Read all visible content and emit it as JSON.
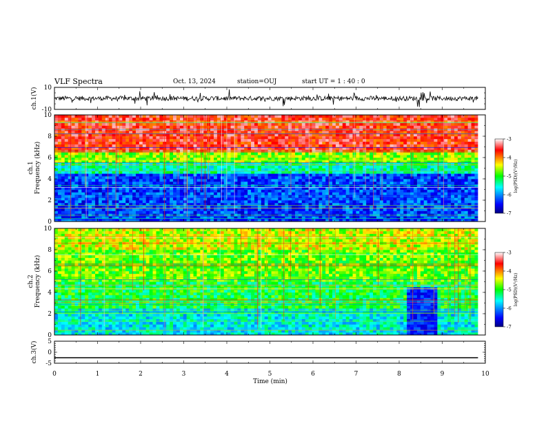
{
  "header": {
    "title": "VLF Spectra",
    "date": "Oct. 13, 2024",
    "station": "station=OUJ",
    "start_ut": "start  UT =   1 : 40 : 0"
  },
  "chart_data": [
    {
      "type": "line",
      "panel": "ch1-waveform",
      "ylabel": "ch.1(V)",
      "ylim": [
        -10,
        10
      ],
      "y_ticks": [
        "10",
        "-10"
      ],
      "x_range_min": [
        0,
        9.83
      ],
      "baseline": 0,
      "noise_amplitude": 3
    },
    {
      "type": "heatmap",
      "panel": "ch1-spectrogram",
      "ylabel": "ch.1\nFrequency (kHz)",
      "ylim": [
        0,
        10
      ],
      "y_ticks": [
        "0",
        "2",
        "4",
        "6",
        "8",
        "10"
      ],
      "x_range_min": [
        0,
        9.83
      ],
      "colorbar": {
        "label": "log(PSD)(V²/Hz)",
        "range": [
          -7,
          -3
        ],
        "ticks": [
          "-3",
          "-4",
          "-5",
          "-6",
          "-7"
        ]
      },
      "bands": [
        {
          "f_khz": [
            0,
            4.5
          ],
          "log_psd": -6.3
        },
        {
          "f_khz": [
            4.5,
            5.5
          ],
          "log_psd": -5.4
        },
        {
          "f_khz": [
            5.5,
            6.5
          ],
          "log_psd": -4.7
        },
        {
          "f_khz": [
            6.5,
            10
          ],
          "log_psd": -3.6
        }
      ]
    },
    {
      "type": "heatmap",
      "panel": "ch2-spectrogram",
      "ylabel": "ch.2\nFrequency (kHz)",
      "ylim": [
        0,
        10
      ],
      "y_ticks": [
        "0",
        "2",
        "4",
        "6",
        "8",
        "10"
      ],
      "x_range_min": [
        0,
        9.83
      ],
      "colorbar": {
        "label": "log(PSD)(V²/Hz)",
        "range": [
          -7,
          -3
        ],
        "ticks": [
          "-3",
          "-4",
          "-5",
          "-6",
          "-7"
        ]
      },
      "bands": [
        {
          "f_khz": [
            0,
            2.5
          ],
          "log_psd": -5.6
        },
        {
          "f_khz": [
            2.5,
            5
          ],
          "log_psd": -5.1
        },
        {
          "f_khz": [
            5,
            8
          ],
          "log_psd": -4.8
        },
        {
          "f_khz": [
            8,
            10
          ],
          "log_psd": -4.5
        }
      ],
      "low_power_interval": {
        "t_min": [
          8.2,
          8.9
        ],
        "f_khz": [
          0,
          4.5
        ],
        "log_psd": -6.4
      }
    },
    {
      "type": "line",
      "panel": "ch3-waveform",
      "ylabel": "ch.3(V)",
      "ylim": [
        -5,
        5
      ],
      "y_ticks": [
        "5",
        "0",
        "-5"
      ],
      "x_range_min": [
        0,
        9.83
      ],
      "values": [
        -2.5,
        -2.5
      ]
    }
  ],
  "x_axis": {
    "xlabel": "Time (min)",
    "xlim": [
      0,
      10
    ],
    "ticks": [
      "0",
      "1",
      "2",
      "3",
      "4",
      "5",
      "6",
      "7",
      "8",
      "9",
      "10"
    ]
  }
}
